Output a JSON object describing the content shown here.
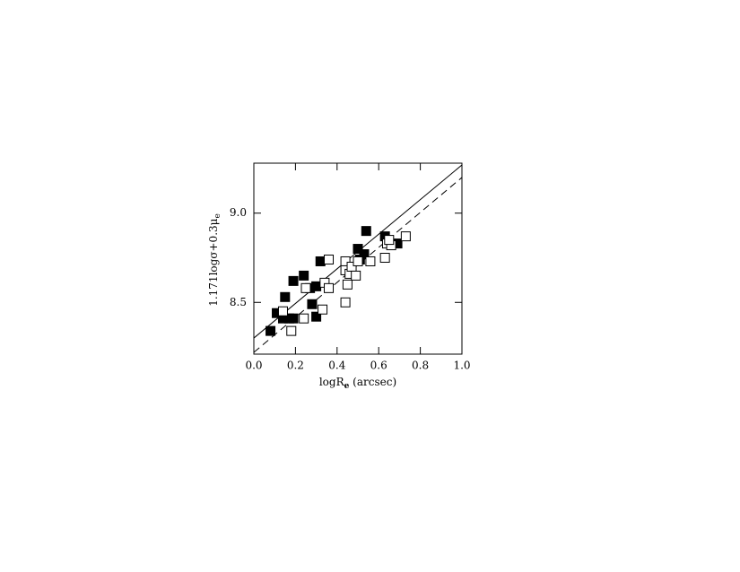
{
  "chart_data": {
    "type": "scatter",
    "x_label_parts": [
      "logR",
      "e",
      " (arcsec)"
    ],
    "y_label_parts": [
      "1.171logσ+0.3μ",
      "e"
    ],
    "xlim": [
      0,
      1
    ],
    "ylim": [
      8.21,
      9.28
    ],
    "xticks": [
      {
        "value": 0,
        "label": "0.0"
      },
      0.2,
      0.4,
      0.6,
      0.8,
      {
        "value": 1,
        "label": "1.0"
      }
    ],
    "yticks": [
      8.5,
      {
        "value": 9,
        "label": "9.0"
      }
    ],
    "series": [
      {
        "marker": "filled",
        "color": "#000000",
        "x": [
          0.08,
          0.11,
          0.15,
          0.14,
          0.17,
          0.19,
          0.19,
          0.24,
          0.27,
          0.28,
          0.3,
          0.3,
          0.32,
          0.5,
          0.51,
          0.53,
          0.54,
          0.63,
          0.69
        ],
        "values": [
          8.34,
          8.44,
          8.53,
          8.41,
          8.41,
          8.62,
          8.41,
          8.65,
          8.58,
          8.49,
          8.59,
          8.42,
          8.73,
          8.8,
          8.74,
          8.77,
          8.9,
          8.87,
          8.83
        ]
      },
      {
        "marker": "open",
        "color": "#000000",
        "x": [
          0.14,
          0.18,
          0.24,
          0.25,
          0.33,
          0.34,
          0.36,
          0.36,
          0.44,
          0.44,
          0.45,
          0.44,
          0.46,
          0.47,
          0.49,
          0.5,
          0.56,
          0.63,
          0.64,
          0.66,
          0.73,
          0.65
        ],
        "values": [
          8.45,
          8.34,
          8.41,
          8.58,
          8.46,
          8.61,
          8.74,
          8.58,
          8.73,
          8.68,
          8.6,
          8.5,
          8.66,
          8.7,
          8.65,
          8.73,
          8.73,
          8.75,
          8.83,
          8.82,
          8.87,
          8.85
        ]
      }
    ],
    "lines": [
      {
        "style": "solid",
        "x": [
          0,
          1
        ],
        "values": [
          8.3,
          9.27
        ]
      },
      {
        "style": "dashed",
        "x": [
          0,
          1
        ],
        "values": [
          8.22,
          9.2
        ]
      }
    ]
  }
}
